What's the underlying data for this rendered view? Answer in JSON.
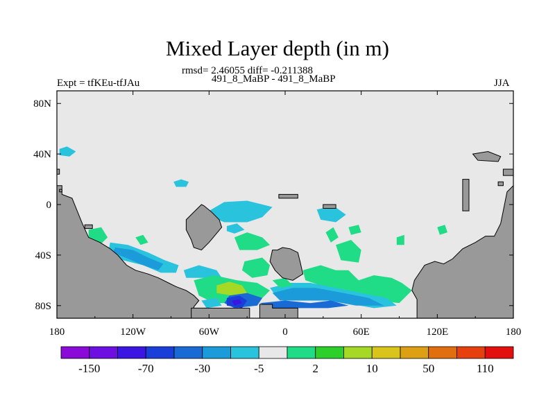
{
  "header": {
    "title": "Mixed Layer depth (in m)",
    "rmsd_line": "rmsd= 2.46055 diff= -0.211388",
    "subtitle": "491_8_MaBP - 491_8_MaBP",
    "left_label": "Expt = tfKEu-tfJAu",
    "right_label": "JJA"
  },
  "chart_data": {
    "type": "heatmap",
    "title": "Mixed Layer depth (in m)",
    "subtitle": "491_8_MaBP - 491_8_MaBP",
    "xlabel": "",
    "ylabel": "",
    "x_ticks": [
      "180",
      "120W",
      "60W",
      "0",
      "60E",
      "120E",
      "180"
    ],
    "x_tick_values": [
      -180,
      -120,
      -60,
      0,
      60,
      120,
      180
    ],
    "y_ticks": [
      "80N",
      "40N",
      "0",
      "40S",
      "80S"
    ],
    "y_tick_values": [
      80,
      40,
      0,
      -40,
      -80
    ],
    "xlim": [
      -180,
      180
    ],
    "ylim": [
      -90,
      90
    ],
    "grid": false,
    "stats": {
      "rmsd": 2.46055,
      "diff": -0.211388
    },
    "colorbar": {
      "labels": [
        "-150",
        "-70",
        "-30",
        "-5",
        "2",
        "10",
        "50",
        "110"
      ],
      "colors": [
        "#8a0bd8",
        "#6d0fe0",
        "#3b16e3",
        "#1a3fd8",
        "#1a6ad6",
        "#1b9bda",
        "#29c3dd",
        "#e8e8e8",
        "#21dc86",
        "#2dd02a",
        "#a6d826",
        "#d9c41b",
        "#dd9f14",
        "#e26f0f",
        "#e5400e",
        "#e30f0f"
      ]
    },
    "land_color": "#999999",
    "no_change_color": "#e8e8e8",
    "land": [
      [
        [
          -180,
          -90
        ],
        [
          -180,
          15
        ],
        [
          -176,
          15
        ],
        [
          -176,
          8
        ],
        [
          -168,
          5
        ],
        [
          -164,
          -5
        ],
        [
          -160,
          -15
        ],
        [
          -155,
          -26
        ],
        [
          -146,
          -30
        ],
        [
          -138,
          -35
        ],
        [
          -132,
          -40
        ],
        [
          -125,
          -48
        ],
        [
          -118,
          -52
        ],
        [
          -108,
          -55
        ],
        [
          -100,
          -58
        ],
        [
          -92,
          -62
        ],
        [
          -86,
          -65
        ],
        [
          -78,
          -68
        ],
        [
          -72,
          -72
        ],
        [
          -68,
          -76
        ],
        [
          -72,
          -81
        ],
        [
          -72,
          -90
        ]
      ],
      [
        [
          -180,
          28
        ],
        [
          -178,
          28
        ],
        [
          -178,
          24
        ],
        [
          -180,
          24
        ]
      ],
      [
        [
          -178,
          12
        ],
        [
          -176,
          12
        ],
        [
          -176,
          10
        ],
        [
          -178,
          10
        ]
      ],
      [
        [
          -158,
          -16
        ],
        [
          -152,
          -16
        ],
        [
          -152,
          -19
        ],
        [
          -158,
          -19
        ]
      ],
      [
        [
          -78,
          -12
        ],
        [
          -72,
          -6
        ],
        [
          -66,
          0
        ],
        [
          -64,
          -1
        ],
        [
          -58,
          -6
        ],
        [
          -52,
          -12
        ],
        [
          -50,
          -18
        ],
        [
          -55,
          -24
        ],
        [
          -60,
          -30
        ],
        [
          -66,
          -36
        ],
        [
          -72,
          -34
        ],
        [
          -74,
          -28
        ],
        [
          -78,
          -20
        ]
      ],
      [
        [
          -10,
          -36
        ],
        [
          -6,
          -36
        ],
        [
          -2,
          -34
        ],
        [
          4,
          -35
        ],
        [
          10,
          -38
        ],
        [
          12,
          -46
        ],
        [
          14,
          -55
        ],
        [
          6,
          -60
        ],
        [
          -2,
          -58
        ],
        [
          -8,
          -52
        ],
        [
          -12,
          -45
        ]
      ],
      [
        [
          -5,
          5
        ],
        [
          10,
          5
        ],
        [
          10,
          8
        ],
        [
          -5,
          8
        ]
      ],
      [
        [
          30,
          0
        ],
        [
          40,
          0
        ],
        [
          40,
          -3
        ],
        [
          30,
          -3
        ]
      ],
      [
        [
          104,
          -90
        ],
        [
          104,
          -75
        ],
        [
          100,
          -68
        ],
        [
          102,
          -60
        ],
        [
          110,
          -48
        ],
        [
          118,
          -45
        ],
        [
          125,
          -47
        ],
        [
          132,
          -43
        ],
        [
          140,
          -35
        ],
        [
          150,
          -30
        ],
        [
          158,
          -25
        ],
        [
          165,
          -25
        ],
        [
          170,
          -15
        ],
        [
          172,
          -5
        ],
        [
          175,
          10
        ],
        [
          180,
          15
        ],
        [
          180,
          -90
        ]
      ],
      [
        [
          148,
          40
        ],
        [
          160,
          42
        ],
        [
          170,
          38
        ],
        [
          168,
          34
        ],
        [
          152,
          35
        ]
      ],
      [
        [
          172,
          28
        ],
        [
          180,
          28
        ],
        [
          180,
          23
        ],
        [
          172,
          23
        ]
      ],
      [
        [
          140,
          20
        ],
        [
          145,
          20
        ],
        [
          145,
          -5
        ],
        [
          140,
          -5
        ]
      ],
      [
        [
          168,
          18
        ],
        [
          172,
          18
        ],
        [
          172,
          15
        ],
        [
          168,
          15
        ]
      ],
      [
        [
          -74,
          -90
        ],
        [
          -74,
          -82
        ],
        [
          -28,
          -82
        ],
        [
          -28,
          -90
        ]
      ],
      [
        [
          -20,
          -90
        ],
        [
          -20,
          -79
        ],
        [
          -10,
          -79
        ],
        [
          -10,
          -82
        ],
        [
          10,
          -82
        ],
        [
          10,
          -90
        ]
      ]
    ],
    "anomalies": [
      {
        "color": "#29c3dd",
        "pts": [
          [
            -178,
            44
          ],
          [
            -172,
            46
          ],
          [
            -165,
            42
          ],
          [
            -170,
            38
          ],
          [
            -178,
            39
          ]
        ]
      },
      {
        "color": "#29c3dd",
        "pts": [
          [
            -88,
            18
          ],
          [
            -82,
            20
          ],
          [
            -76,
            18
          ],
          [
            -78,
            14
          ],
          [
            -86,
            14
          ]
        ]
      },
      {
        "color": "#29c3dd",
        "pts": [
          [
            -60,
            -5
          ],
          [
            -48,
            2
          ],
          [
            -30,
            3
          ],
          [
            -10,
            -2
          ],
          [
            -18,
            -10
          ],
          [
            -30,
            -14
          ],
          [
            -48,
            -14
          ],
          [
            -58,
            -10
          ]
        ]
      },
      {
        "color": "#29c3dd",
        "pts": [
          [
            -46,
            -17
          ],
          [
            -38,
            -15
          ],
          [
            -32,
            -20
          ],
          [
            -40,
            -23
          ],
          [
            -46,
            -21
          ]
        ]
      },
      {
        "color": "#29c3dd",
        "pts": [
          [
            25,
            -4
          ],
          [
            38,
            -1
          ],
          [
            48,
            -8
          ],
          [
            40,
            -14
          ],
          [
            28,
            -12
          ]
        ]
      },
      {
        "color": "#21dc86",
        "pts": [
          [
            -155,
            -20
          ],
          [
            -145,
            -18
          ],
          [
            -140,
            -26
          ],
          [
            -146,
            -32
          ],
          [
            -155,
            -28
          ]
        ]
      },
      {
        "color": "#21dc86",
        "pts": [
          [
            -118,
            -26
          ],
          [
            -112,
            -24
          ],
          [
            -108,
            -30
          ],
          [
            -114,
            -32
          ]
        ]
      },
      {
        "color": "#21dc86",
        "pts": [
          [
            -40,
            -26
          ],
          [
            -30,
            -22
          ],
          [
            -18,
            -26
          ],
          [
            -12,
            -32
          ],
          [
            -22,
            -36
          ],
          [
            -36,
            -36
          ]
        ]
      },
      {
        "color": "#21dc86",
        "pts": [
          [
            32,
            -22
          ],
          [
            38,
            -18
          ],
          [
            42,
            -26
          ],
          [
            36,
            -30
          ]
        ]
      },
      {
        "color": "#21dc86",
        "pts": [
          [
            50,
            -18
          ],
          [
            58,
            -16
          ],
          [
            60,
            -22
          ],
          [
            52,
            -24
          ]
        ]
      },
      {
        "color": "#21dc86",
        "pts": [
          [
            40,
            -32
          ],
          [
            52,
            -28
          ],
          [
            60,
            -36
          ],
          [
            58,
            -46
          ],
          [
            44,
            -44
          ]
        ]
      },
      {
        "color": "#21dc86",
        "pts": [
          [
            88,
            -26
          ],
          [
            94,
            -24
          ],
          [
            94,
            -32
          ],
          [
            88,
            -32
          ]
        ]
      },
      {
        "color": "#21dc86",
        "pts": [
          [
            120,
            -18
          ],
          [
            126,
            -16
          ],
          [
            128,
            -22
          ],
          [
            122,
            -24
          ]
        ]
      },
      {
        "color": "#21dc86",
        "pts": [
          [
            -32,
            -45
          ],
          [
            -18,
            -42
          ],
          [
            -12,
            -48
          ],
          [
            -14,
            -56
          ],
          [
            -26,
            -58
          ],
          [
            -34,
            -52
          ]
        ]
      },
      {
        "color": "#21dc86",
        "pts": [
          [
            14,
            -52
          ],
          [
            28,
            -48
          ],
          [
            40,
            -52
          ],
          [
            50,
            -52
          ],
          [
            58,
            -60
          ],
          [
            70,
            -56
          ],
          [
            84,
            -58
          ],
          [
            92,
            -62
          ],
          [
            100,
            -68
          ],
          [
            90,
            -78
          ],
          [
            70,
            -76
          ],
          [
            48,
            -70
          ],
          [
            28,
            -64
          ],
          [
            16,
            -60
          ]
        ]
      },
      {
        "color": "#29c3dd",
        "pts": [
          [
            -138,
            -30
          ],
          [
            -124,
            -32
          ],
          [
            -108,
            -38
          ],
          [
            -95,
            -44
          ],
          [
            -84,
            -48
          ],
          [
            -86,
            -54
          ],
          [
            -98,
            -54
          ],
          [
            -112,
            -48
          ],
          [
            -128,
            -44
          ],
          [
            -140,
            -40
          ]
        ]
      },
      {
        "color": "#1b9bda",
        "pts": [
          [
            -134,
            -34
          ],
          [
            -120,
            -36
          ],
          [
            -108,
            -42
          ],
          [
            -96,
            -47
          ],
          [
            -100,
            -52
          ],
          [
            -112,
            -48
          ],
          [
            -126,
            -42
          ],
          [
            -136,
            -38
          ]
        ]
      },
      {
        "color": "#29c3dd",
        "pts": [
          [
            -80,
            -52
          ],
          [
            -68,
            -48
          ],
          [
            -54,
            -52
          ],
          [
            -50,
            -58
          ],
          [
            -64,
            -58
          ],
          [
            -78,
            -58
          ]
        ]
      },
      {
        "color": "#21dc86",
        "pts": [
          [
            -72,
            -60
          ],
          [
            -56,
            -56
          ],
          [
            -38,
            -60
          ],
          [
            -22,
            -62
          ],
          [
            -12,
            -68
          ],
          [
            -20,
            -76
          ],
          [
            -38,
            -78
          ],
          [
            -56,
            -78
          ],
          [
            -68,
            -72
          ]
        ]
      },
      {
        "color": "#a6d826",
        "pts": [
          [
            -54,
            -64
          ],
          [
            -44,
            -61
          ],
          [
            -34,
            -64
          ],
          [
            -30,
            -70
          ],
          [
            -42,
            -72
          ],
          [
            -54,
            -70
          ]
        ]
      },
      {
        "color": "#29c3dd",
        "pts": [
          [
            -12,
            -66
          ],
          [
            4,
            -62
          ],
          [
            20,
            -62
          ],
          [
            40,
            -66
          ],
          [
            60,
            -70
          ],
          [
            80,
            -74
          ],
          [
            88,
            -80
          ],
          [
            70,
            -82
          ],
          [
            48,
            -78
          ],
          [
            28,
            -74
          ],
          [
            10,
            -72
          ],
          [
            -6,
            -74
          ]
        ]
      },
      {
        "color": "#1b9bda",
        "pts": [
          [
            -10,
            -70
          ],
          [
            6,
            -66
          ],
          [
            24,
            -66
          ],
          [
            46,
            -70
          ],
          [
            66,
            -74
          ],
          [
            78,
            -80
          ],
          [
            56,
            -80
          ],
          [
            34,
            -76
          ],
          [
            12,
            -76
          ],
          [
            -4,
            -76
          ]
        ]
      },
      {
        "color": "#1a6ad6",
        "pts": [
          [
            -44,
            -72
          ],
          [
            -30,
            -70
          ],
          [
            -18,
            -74
          ],
          [
            -22,
            -80
          ],
          [
            -40,
            -82
          ],
          [
            -48,
            -78
          ]
        ]
      },
      {
        "color": "#1a3fd8",
        "pts": [
          [
            -46,
            -74
          ],
          [
            -36,
            -72
          ],
          [
            -30,
            -76
          ],
          [
            -34,
            -82
          ],
          [
            -46,
            -80
          ]
        ]
      },
      {
        "color": "#3b16e3",
        "pts": [
          [
            -42,
            -76
          ],
          [
            -36,
            -75
          ],
          [
            -34,
            -78
          ],
          [
            -40,
            -80
          ]
        ]
      },
      {
        "color": "#1a6ad6",
        "pts": [
          [
            -20,
            -78
          ],
          [
            0,
            -76
          ],
          [
            20,
            -78
          ],
          [
            36,
            -76
          ],
          [
            50,
            -80
          ],
          [
            34,
            -82
          ],
          [
            12,
            -82
          ],
          [
            -10,
            -82
          ]
        ]
      },
      {
        "color": "#29c3dd",
        "pts": [
          [
            -66,
            -76
          ],
          [
            -54,
            -74
          ],
          [
            -50,
            -80
          ],
          [
            -62,
            -82
          ]
        ]
      },
      {
        "color": "#21dc86",
        "pts": [
          [
            -10,
            -60
          ],
          [
            0,
            -58
          ],
          [
            6,
            -64
          ],
          [
            -4,
            -66
          ]
        ]
      }
    ]
  }
}
